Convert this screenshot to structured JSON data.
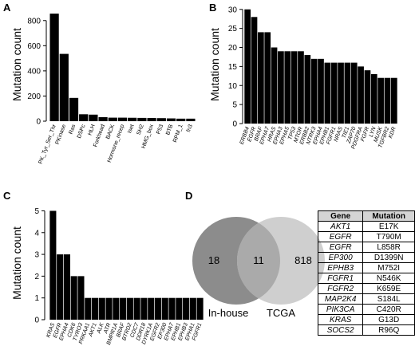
{
  "panels": {
    "a": "A",
    "b": "B",
    "c": "C",
    "d": "D"
  },
  "chart_data": [
    {
      "type": "bar",
      "ylabel": "Mutation count",
      "ylim": [
        0,
        900
      ],
      "yticks": [
        0,
        200,
        400,
        600,
        800
      ],
      "categories": [
        "PK_Tyr_Ser_Thr",
        "PKinase",
        "Ras",
        "DSPc",
        "HLH",
        "Forkhead",
        "BACK",
        "Hormone_recep",
        "Iset",
        "SH2",
        "HMG_box",
        "P53",
        "BTB",
        "RPM_1",
        "fn3"
      ],
      "values": [
        855,
        535,
        185,
        55,
        52,
        32,
        28,
        28,
        27,
        26,
        25,
        24,
        22,
        20,
        20
      ],
      "italic_labels": false
    },
    {
      "type": "bar",
      "ylabel": "Mutation count",
      "ylim": [
        0,
        31
      ],
      "yticks": [
        0,
        5,
        10,
        15,
        20,
        25,
        30
      ],
      "categories": [
        "ERBB4",
        "EGFR",
        "BRAF",
        "EPHA7",
        "HRAS",
        "EPHA3",
        "EPHA5",
        "TP53",
        "MTOR",
        "ERBB2",
        "NTRK3",
        "EPHA4",
        "EPHB1",
        "FGFR1",
        "NRAS",
        "TIE1",
        "ZAP70",
        "PDGFRA",
        "FGFR",
        "LYN",
        "MUSK",
        "TGFBR2",
        "KDR"
      ],
      "values": [
        30,
        28,
        24,
        24,
        20,
        19,
        19,
        19,
        19,
        18,
        17,
        17,
        16,
        16,
        16,
        16,
        16,
        15,
        14,
        13,
        12,
        12,
        12
      ],
      "italic_labels": true
    },
    {
      "type": "bar",
      "ylabel": "Mutation count",
      "ylim": [
        0,
        5.2
      ],
      "yticks": [
        0,
        1,
        2,
        3,
        4,
        5
      ],
      "categories": [
        "KRAS",
        "EGFR",
        "EPHA4",
        "CDK6",
        "TYRO3",
        "PRKAA1",
        "AKT1",
        "ALK",
        "ATR",
        "BMPR1A",
        "BRAF",
        "BTRD2",
        "CDC7",
        "DDR18",
        "DYRK1A",
        "EGFR2",
        "EP300",
        "EPHA7",
        "EPHB1",
        "EPHB3",
        "EPHA1",
        "FGFR1"
      ],
      "values": [
        5,
        3,
        3,
        2,
        2,
        1,
        1,
        1,
        1,
        1,
        1,
        1,
        1,
        1,
        1,
        1,
        1,
        1,
        1,
        1,
        1,
        1
      ],
      "italic_labels": true
    }
  ],
  "venn": {
    "left_only": "18",
    "overlap": "11",
    "right_only": "818",
    "left_label": "In-house",
    "right_label": "TCGA",
    "left_color": "#8c8c8c",
    "right_color": "#cfcfcf",
    "overlap_color": "#aaaaaa"
  },
  "mutation_table": {
    "headers": [
      "Gene",
      "Mutation"
    ],
    "rows": [
      [
        "AKT1",
        "E17K"
      ],
      [
        "EGFR",
        "T790M"
      ],
      [
        "EGFR",
        "L858R"
      ],
      [
        "EP300",
        "D1399N"
      ],
      [
        "EPHB3",
        "M752I"
      ],
      [
        "FGFR1",
        "N546K"
      ],
      [
        "FGFR2",
        "K659E"
      ],
      [
        "MAP2K4",
        "S184L"
      ],
      [
        "PIK3CA",
        "C420R"
      ],
      [
        "KRAS",
        "G13D"
      ],
      [
        "SOCS2",
        "R96Q"
      ]
    ]
  }
}
